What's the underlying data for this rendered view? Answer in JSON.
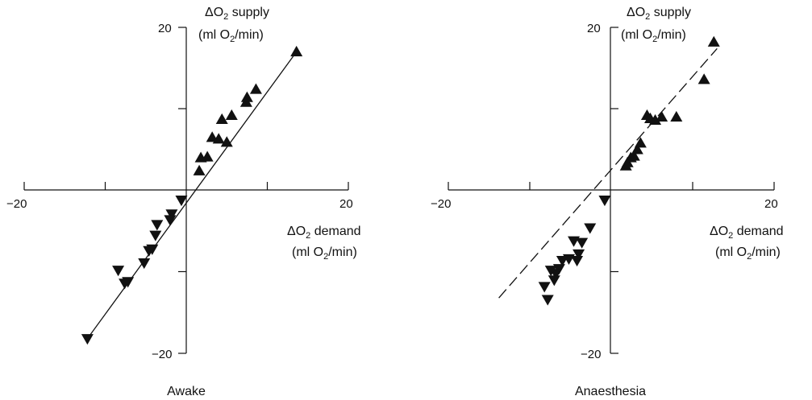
{
  "chart_data": [
    {
      "type": "scatter",
      "title": "",
      "panel_label": "Awake",
      "xlabel": {
        "line1": "ΔO",
        "sub": "2",
        "rest": " demand",
        "line2a": "(ml O",
        "line2sub": "2",
        "line2b": "/min)"
      },
      "ylabel": {
        "line1": "ΔO",
        "sub": "2",
        "rest": " supply",
        "line2a": "(ml O",
        "line2sub": "2",
        "line2b": "/min)"
      },
      "xlim": [
        -20,
        20
      ],
      "ylim": [
        -20,
        20
      ],
      "tick_labels": {
        "x_min": "−20",
        "x_max": "20",
        "y_min": "−20",
        "y_max": "20"
      },
      "fit_line": {
        "style": "solid",
        "points": [
          [
            -12.2,
            -18.2
          ],
          [
            13.6,
            17.0
          ]
        ]
      },
      "series": [
        {
          "marker": "triangle-up",
          "points": [
            [
              1.6,
              2.4
            ],
            [
              1.8,
              4.0
            ],
            [
              2.6,
              4.1
            ],
            [
              3.2,
              6.5
            ],
            [
              4.0,
              6.3
            ],
            [
              4.4,
              8.7
            ],
            [
              5.0,
              5.9
            ],
            [
              5.6,
              9.2
            ],
            [
              7.4,
              10.8
            ],
            [
              7.5,
              11.4
            ],
            [
              8.6,
              12.4
            ],
            [
              13.6,
              17.0
            ]
          ]
        },
        {
          "marker": "triangle-down",
          "points": [
            [
              -0.6,
              -1.2
            ],
            [
              -1.8,
              -2.9
            ],
            [
              -2.0,
              -3.6
            ],
            [
              -3.6,
              -4.2
            ],
            [
              -3.8,
              -5.5
            ],
            [
              -4.2,
              -7.2
            ],
            [
              -4.6,
              -7.4
            ],
            [
              -5.2,
              -8.9
            ],
            [
              -7.2,
              -11.2
            ],
            [
              -7.6,
              -11.4
            ],
            [
              -8.4,
              -9.8
            ],
            [
              -12.2,
              -18.2
            ]
          ]
        }
      ]
    },
    {
      "type": "scatter",
      "title": "",
      "panel_label": "Anaesthesia",
      "xlabel": {
        "line1": "ΔO",
        "sub": "2",
        "rest": " demand",
        "line2a": "(ml O",
        "line2sub": "2",
        "line2b": "/min)"
      },
      "ylabel": {
        "line1": "ΔO",
        "sub": "2",
        "rest": " supply",
        "line2a": "(ml O",
        "line2sub": "2",
        "line2b": "/min)"
      },
      "xlim": [
        -20,
        20
      ],
      "ylim": [
        -20,
        20
      ],
      "tick_labels": {
        "x_min": "−20",
        "x_max": "20",
        "y_min": "−20",
        "y_max": "20"
      },
      "fit_line": {
        "style": "dashed",
        "points": [
          [
            -13.8,
            -13.2
          ],
          [
            13.0,
            17.4
          ]
        ]
      },
      "series": [
        {
          "marker": "triangle-up",
          "points": [
            [
              1.8,
              3.0
            ],
            [
              2.0,
              3.4
            ],
            [
              2.4,
              4.0
            ],
            [
              2.8,
              4.2
            ],
            [
              3.2,
              5.0
            ],
            [
              3.6,
              5.8
            ],
            [
              4.4,
              9.2
            ],
            [
              4.8,
              8.8
            ],
            [
              5.4,
              8.6
            ],
            [
              6.2,
              9.0
            ],
            [
              8.0,
              9.0
            ],
            [
              11.4,
              13.6
            ],
            [
              12.6,
              18.2
            ]
          ]
        },
        {
          "marker": "triangle-down",
          "points": [
            [
              -0.8,
              -1.2
            ],
            [
              -2.6,
              -4.6
            ],
            [
              -3.6,
              -6.4
            ],
            [
              -4.0,
              -7.8
            ],
            [
              -4.2,
              -8.6
            ],
            [
              -4.6,
              -6.2
            ],
            [
              -5.2,
              -8.4
            ],
            [
              -6.0,
              -8.6
            ],
            [
              -6.4,
              -9.6
            ],
            [
              -6.8,
              -10.2
            ],
            [
              -7.0,
              -11.0
            ],
            [
              -7.4,
              -9.8
            ],
            [
              -7.8,
              -13.4
            ],
            [
              -8.2,
              -11.8
            ]
          ]
        }
      ]
    }
  ]
}
